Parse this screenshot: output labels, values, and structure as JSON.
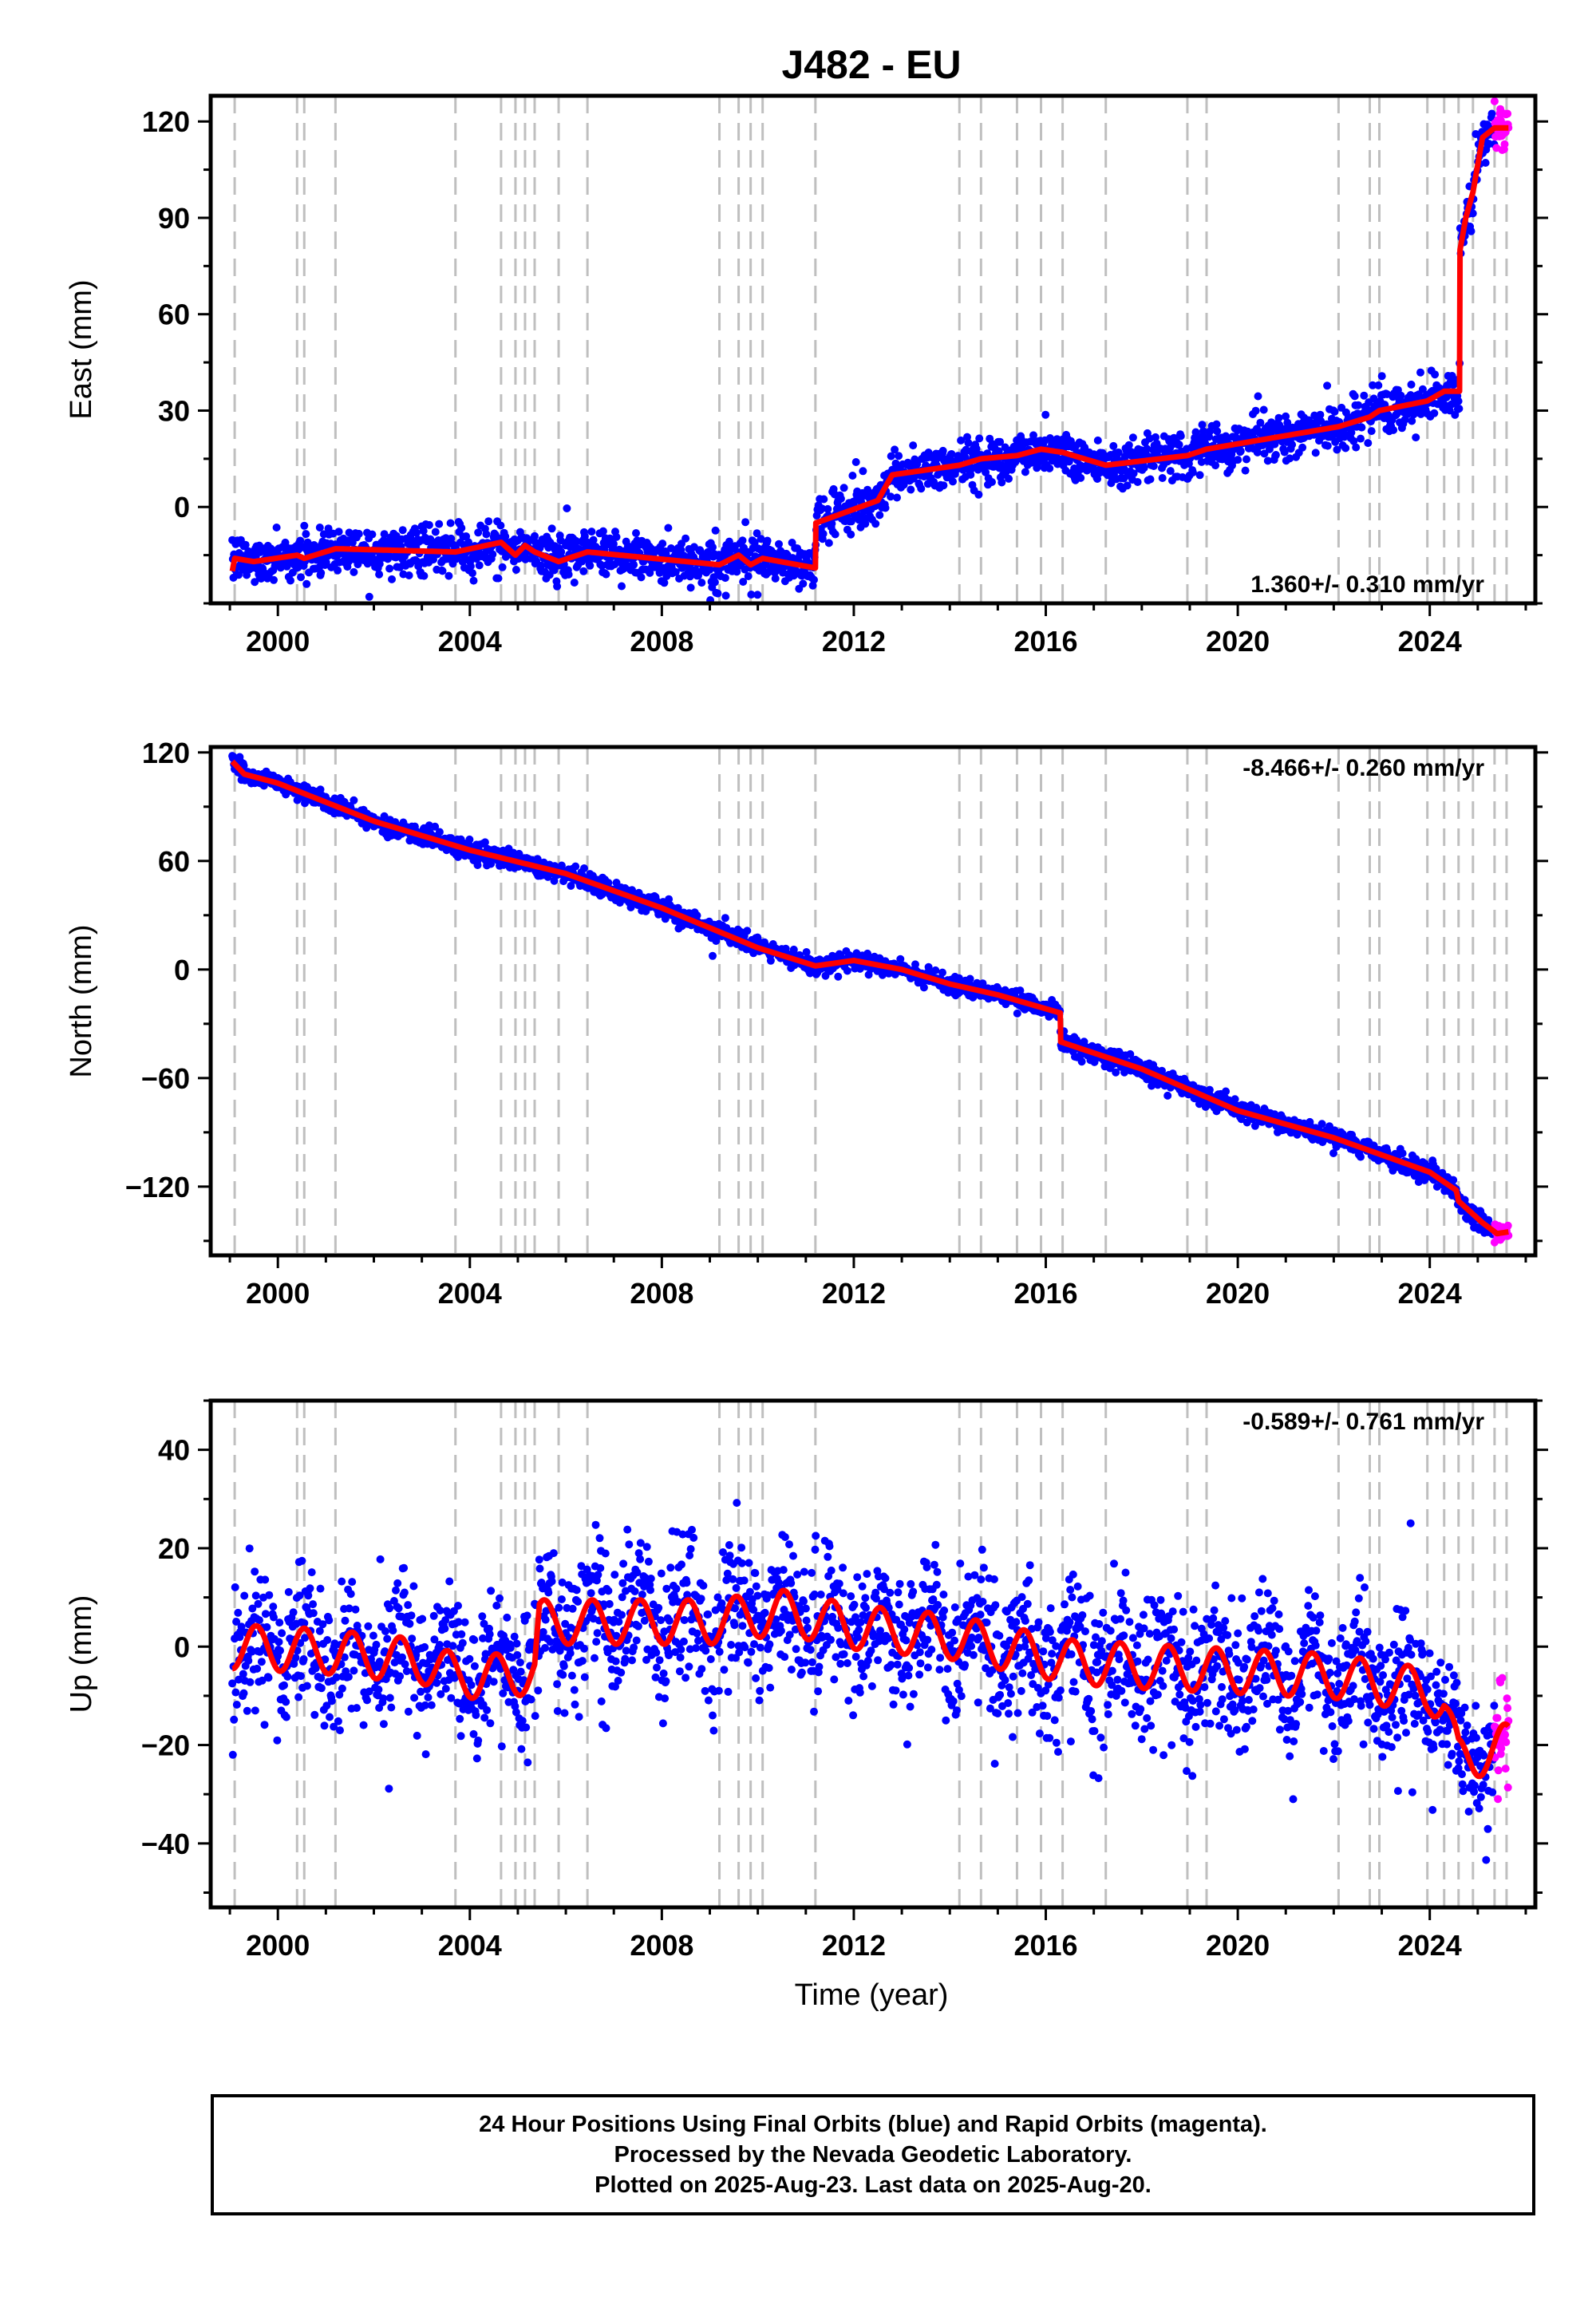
{
  "title": "J482 - EU",
  "x_axis": {
    "label": "Time (year)",
    "ticks": [
      2000,
      2004,
      2008,
      2012,
      2016,
      2020,
      2024
    ],
    "range": [
      1998.6,
      2026.2
    ]
  },
  "colors": {
    "final_orbits": "#0000ff",
    "rapid_orbits": "#ff00ff",
    "model": "#ff0000",
    "event_lines": "#bfbfbf"
  },
  "event_epochs": [
    1999.1,
    2000.4,
    2000.55,
    2001.2,
    2003.7,
    2004.65,
    2004.95,
    2005.15,
    2005.35,
    2005.85,
    2006.45,
    2009.2,
    2009.6,
    2009.85,
    2010.1,
    2011.2,
    2014.2,
    2014.65,
    2015.4,
    2015.9,
    2016.35,
    2017.25,
    2018.95,
    2019.35,
    2022.1,
    2022.75,
    2022.95,
    2023.95,
    2024.3,
    2024.6,
    2024.9,
    2025.35,
    2025.6
  ],
  "chart_data": [
    {
      "type": "scatter",
      "component": "east",
      "ylabel": "East (mm)",
      "ylim": [
        -30,
        128
      ],
      "yticks": [
        0,
        30,
        60,
        90,
        120
      ],
      "rate_text": "1.360+/- 0.310 mm/yr",
      "rate_position": "bottom-right",
      "series": [
        {
          "name": "Final Orbits",
          "color": "#0000ff",
          "marker": "dot",
          "scatter_mm": 3.5
        },
        {
          "name": "Rapid Orbits",
          "color": "#ff00ff",
          "marker": "dot",
          "range": [
            2025.35,
            2025.64
          ]
        },
        {
          "name": "Model",
          "color": "#ff0000",
          "style": "line",
          "x": [
            1999.05,
            1999.1,
            1999.5,
            2000.4,
            2000.55,
            2001.2,
            2003.7,
            2004.65,
            2004.95,
            2005.15,
            2005.35,
            2005.85,
            2006.45,
            2009.2,
            2009.6,
            2009.85,
            2010.1,
            2011.2,
            2011.21,
            2012.5,
            2012.8,
            2014.2,
            2014.65,
            2015.4,
            2015.9,
            2016.35,
            2017.25,
            2018.95,
            2019.35,
            2022.1,
            2022.75,
            2022.95,
            2023.95,
            2024.3,
            2024.62,
            2024.63,
            2024.75,
            2024.9,
            2025.1,
            2025.35,
            2025.64
          ],
          "y": [
            -20,
            -16,
            -17,
            -15,
            -16,
            -13,
            -14,
            -11,
            -15,
            -12,
            -14,
            -17,
            -14,
            -18,
            -15,
            -18,
            -16,
            -19,
            -5,
            2,
            10,
            13,
            15,
            16,
            18,
            17,
            13,
            16,
            18,
            25,
            28,
            30,
            33,
            36,
            36,
            80,
            90,
            98,
            115,
            118,
            118
          ]
        }
      ]
    },
    {
      "type": "scatter",
      "component": "north",
      "ylabel": "North (mm)",
      "ylim": [
        -158,
        123
      ],
      "yticks": [
        -120,
        -60,
        0,
        60,
        120
      ],
      "rate_text": "-8.466+/- 0.260 mm/yr",
      "rate_position": "top-right",
      "series": [
        {
          "name": "Final Orbits",
          "color": "#0000ff",
          "marker": "dot",
          "scatter_mm": 2.5
        },
        {
          "name": "Rapid Orbits",
          "color": "#ff00ff",
          "marker": "dot",
          "range": [
            2025.35,
            2025.64
          ]
        },
        {
          "name": "Model",
          "color": "#ff0000",
          "style": "line",
          "x": [
            1999.05,
            1999.3,
            2000.0,
            2002.0,
            2004.0,
            2006.0,
            2008.0,
            2010.0,
            2011.2,
            2012.0,
            2013.0,
            2014.0,
            2015.0,
            2016.3,
            2016.31,
            2018.0,
            2020.0,
            2022.0,
            2024.0,
            2024.55,
            2024.6,
            2025.1,
            2025.4,
            2025.64
          ],
          "y": [
            115,
            108,
            103,
            82,
            66,
            53,
            34,
            12,
            2,
            5,
            0,
            -8,
            -14,
            -24,
            -40,
            -55,
            -78,
            -93,
            -112,
            -122,
            -128,
            -140,
            -146,
            -145
          ]
        }
      ]
    },
    {
      "type": "scatter",
      "component": "up",
      "ylabel": "Up (mm)",
      "ylim": [
        -53,
        50
      ],
      "yticks": [
        -40,
        -20,
        0,
        20,
        40
      ],
      "rate_text": "-0.589+/- 0.761 mm/yr",
      "rate_position": "top-right",
      "series": [
        {
          "name": "Final Orbits",
          "color": "#0000ff",
          "marker": "dot",
          "scatter_mm": 7
        },
        {
          "name": "Rapid Orbits",
          "color": "#ff00ff",
          "marker": "dot",
          "range": [
            2025.35,
            2025.64
          ]
        },
        {
          "name": "Model",
          "color": "#ff0000",
          "style": "line",
          "seasonal_amplitude_mm": 4.5,
          "x": [
            1999.05,
            2001.0,
            2003.0,
            2003.7,
            2004.65,
            2005.35,
            2005.45,
            2007.0,
            2009.0,
            2010.5,
            2012.0,
            2014.0,
            2016.0,
            2016.35,
            2018.0,
            2020.0,
            2022.0,
            2024.0,
            2024.3,
            2024.6,
            2025.0,
            2025.64
          ],
          "y": [
            0,
            -1,
            -3,
            -6,
            -6,
            -5,
            5,
            5,
            5,
            7,
            4,
            2,
            -2,
            -3,
            -4,
            -5,
            -6,
            -9,
            -12,
            -23,
            -22,
            -20
          ]
        }
      ]
    }
  ],
  "footer": {
    "line1": "24 Hour Positions Using Final Orbits (blue) and Rapid Orbits (magenta).",
    "line2": "Processed by the Nevada Geodetic Laboratory.",
    "line3": "Plotted on 2025-Aug-23. Last data on 2025-Aug-20."
  }
}
